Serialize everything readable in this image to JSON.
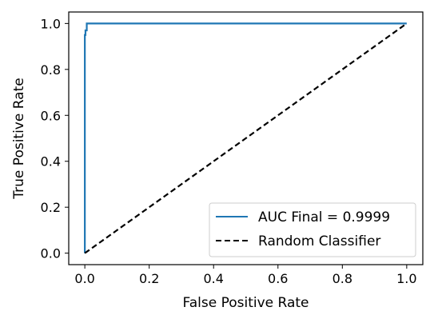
{
  "chart_data": {
    "type": "line",
    "xlabel": "False Positive Rate",
    "ylabel": "True Positive Rate",
    "xlim": [
      -0.05,
      1.05
    ],
    "ylim": [
      -0.05,
      1.05
    ],
    "xticks": [
      0.0,
      0.2,
      0.4,
      0.6,
      0.8,
      1.0
    ],
    "yticks": [
      0.0,
      0.2,
      0.4,
      0.6,
      0.8,
      1.0
    ],
    "xtick_labels": [
      "0.0",
      "0.2",
      "0.4",
      "0.6",
      "0.8",
      "1.0"
    ],
    "ytick_labels": [
      "0.0",
      "0.2",
      "0.4",
      "0.6",
      "0.8",
      "1.0"
    ],
    "grid": false,
    "legend_position": "lower-right",
    "series": [
      {
        "name": "AUC Final = 0.9999",
        "color": "#1f77b4",
        "style": "solid",
        "x": [
          0.0,
          0.0,
          0.002,
          0.002,
          0.006,
          0.006,
          1.0
        ],
        "y": [
          0.0,
          0.95,
          0.95,
          0.97,
          0.97,
          1.0,
          1.0
        ]
      },
      {
        "name": "Random Classifier",
        "color": "#000000",
        "style": "dashed",
        "x": [
          0.0,
          1.0
        ],
        "y": [
          0.0,
          1.0
        ]
      }
    ]
  }
}
